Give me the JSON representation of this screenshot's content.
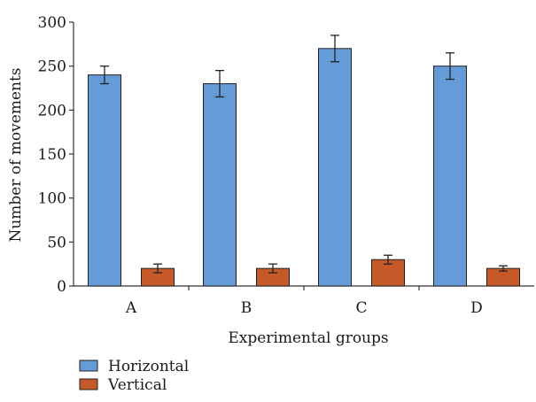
{
  "chart_data": {
    "type": "bar",
    "title": "",
    "xlabel": "Experimental groups",
    "ylabel": "Number of movements",
    "categories": [
      "A",
      "B",
      "C",
      "D"
    ],
    "ylim": [
      0,
      300
    ],
    "yticks": [
      0,
      50,
      100,
      150,
      200,
      250,
      300
    ],
    "grid": false,
    "legend_position": "bottom-left",
    "series": [
      {
        "name": "Horizontal",
        "color": "#659bd6",
        "values": [
          240,
          230,
          270,
          250
        ],
        "errors": [
          10,
          15,
          15,
          15
        ]
      },
      {
        "name": "Vertical",
        "color": "#c55a28",
        "values": [
          20,
          20,
          30,
          20
        ],
        "errors": [
          5,
          5,
          5,
          3
        ]
      }
    ]
  }
}
